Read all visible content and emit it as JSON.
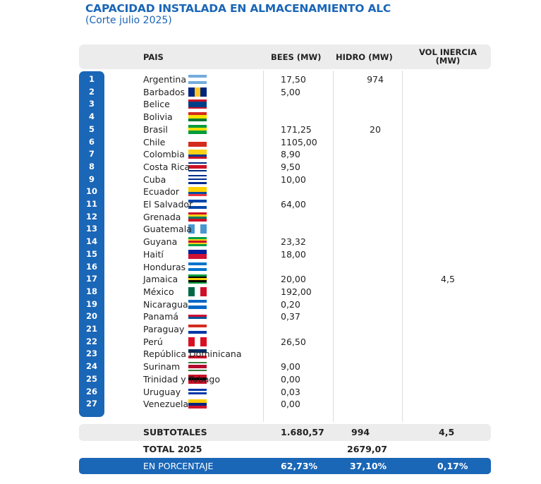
{
  "title": "CAPACIDAD INSTALADA EN ALMACENAMIENTO ALC",
  "subtitle": "(Corte julio 2025)",
  "headers": {
    "pais": "PAIS",
    "bees": "BEES (MW)",
    "hidro": "HIDRO (MW)",
    "vol": "VOL INERCIA (MW)"
  },
  "rows": [
    {
      "n": "1",
      "country": "Argentina",
      "bees": "17,50",
      "hidro": "974",
      "vol": "",
      "flag": [
        "#74acdf",
        "#ffffff",
        "#74acdf"
      ]
    },
    {
      "n": "2",
      "country": "Barbados",
      "bees": "5,00",
      "hidro": "",
      "vol": "",
      "flag": [
        "#00267f",
        "#ffc726",
        "#00267f"
      ],
      "vert": true
    },
    {
      "n": "3",
      "country": "Belice",
      "bees": "",
      "hidro": "",
      "vol": "",
      "flag": [
        "#ce1126",
        "#003f87",
        "#003f87",
        "#003f87",
        "#ce1126"
      ]
    },
    {
      "n": "4",
      "country": "Bolivia",
      "bees": "",
      "hidro": "",
      "vol": "",
      "flag": [
        "#d52b1e",
        "#f9e300",
        "#007934"
      ]
    },
    {
      "n": "5",
      "country": "Brasil",
      "bees": "171,25",
      "hidro": "20",
      "vol": "",
      "flag": [
        "#009c3b",
        "#ffdf00",
        "#009c3b"
      ]
    },
    {
      "n": "6",
      "country": "Chile",
      "bees": "1105,00",
      "hidro": "",
      "vol": "",
      "flag": [
        "#ffffff",
        "#d52b1e"
      ]
    },
    {
      "n": "7",
      "country": "Colombia",
      "bees": "8,90",
      "hidro": "",
      "vol": "",
      "flag": [
        "#fcd116",
        "#fcd116",
        "#003893",
        "#ce1126"
      ]
    },
    {
      "n": "8",
      "country": "Costa Rica",
      "bees": "9,50",
      "hidro": "",
      "vol": "",
      "flag": [
        "#002b7f",
        "#ffffff",
        "#ce1126",
        "#ce1126",
        "#ffffff",
        "#002b7f"
      ]
    },
    {
      "n": "9",
      "country": "Cuba",
      "bees": "10,00",
      "hidro": "",
      "vol": "",
      "flag": [
        "#002a8f",
        "#ffffff",
        "#002a8f",
        "#ffffff",
        "#002a8f"
      ]
    },
    {
      "n": "10",
      "country": "Ecuador",
      "bees": "",
      "hidro": "",
      "vol": "",
      "flag": [
        "#ffd100",
        "#ffd100",
        "#034ea2",
        "#ef3340"
      ]
    },
    {
      "n": "11",
      "country": "El Salvador",
      "bees": "64,00",
      "hidro": "",
      "vol": "",
      "flag": [
        "#0047ab",
        "#ffffff",
        "#0047ab"
      ]
    },
    {
      "n": "12",
      "country": "Grenada",
      "bees": "",
      "hidro": "",
      "vol": "",
      "flag": [
        "#ce1126",
        "#fcd116",
        "#007a5e",
        "#ce1126"
      ]
    },
    {
      "n": "13",
      "country": "Guatemala",
      "bees": "",
      "hidro": "",
      "vol": "",
      "flag": [
        "#4997d0",
        "#ffffff",
        "#4997d0"
      ],
      "vert": true
    },
    {
      "n": "14",
      "country": "Guyana",
      "bees": "23,32",
      "hidro": "",
      "vol": "",
      "flag": [
        "#009e49",
        "#fcd116",
        "#ce1126",
        "#fcd116",
        "#009e49"
      ]
    },
    {
      "n": "15",
      "country": "Haití",
      "bees": "18,00",
      "hidro": "",
      "vol": "",
      "flag": [
        "#00209f",
        "#d21034"
      ]
    },
    {
      "n": "16",
      "country": "Honduras",
      "bees": "",
      "hidro": "",
      "vol": "",
      "flag": [
        "#0073cf",
        "#ffffff",
        "#0073cf"
      ]
    },
    {
      "n": "17",
      "country": "Jamaica",
      "bees": "20,00",
      "hidro": "",
      "vol": "4,5",
      "flag": [
        "#009b3a",
        "#000000",
        "#fed100",
        "#000000",
        "#009b3a"
      ]
    },
    {
      "n": "18",
      "country": "México",
      "bees": "192,00",
      "hidro": "",
      "vol": "",
      "flag": [
        "#006847",
        "#ffffff",
        "#ce1126"
      ],
      "vert": true
    },
    {
      "n": "19",
      "country": "Nicaragua",
      "bees": "0,20",
      "hidro": "",
      "vol": "",
      "flag": [
        "#0067c6",
        "#ffffff",
        "#0067c6"
      ]
    },
    {
      "n": "20",
      "country": "Panamá",
      "bees": "0,37",
      "hidro": "",
      "vol": "",
      "flag": [
        "#ffffff",
        "#d21034",
        "#005293",
        "#ffffff"
      ]
    },
    {
      "n": "21",
      "country": "Paraguay",
      "bees": "",
      "hidro": "",
      "vol": "",
      "flag": [
        "#d52b1e",
        "#ffffff",
        "#0038a8"
      ]
    },
    {
      "n": "22",
      "country": "Perú",
      "bees": "26,50",
      "hidro": "",
      "vol": "",
      "flag": [
        "#d91023",
        "#ffffff",
        "#d91023"
      ],
      "vert": true
    },
    {
      "n": "23",
      "country": "República Dominicana",
      "bees": "",
      "hidro": "",
      "vol": "",
      "flag": [
        "#002d62",
        "#ffffff",
        "#ce1126"
      ]
    },
    {
      "n": "24",
      "country": "Surinam",
      "bees": "9,00",
      "hidro": "",
      "vol": "",
      "flag": [
        "#377e3f",
        "#ffffff",
        "#b40a2d",
        "#b40a2d",
        "#ffffff",
        "#377e3f"
      ]
    },
    {
      "n": "25",
      "country": "Trinidad y Tobago",
      "bees": "0,00",
      "hidro": "",
      "vol": "",
      "flag": [
        "#ce1126",
        "#000000",
        "#ce1126"
      ]
    },
    {
      "n": "26",
      "country": "Uruguay",
      "bees": "0,03",
      "hidro": "",
      "vol": "",
      "flag": [
        "#ffffff",
        "#0038a8",
        "#ffffff",
        "#0038a8",
        "#ffffff"
      ]
    },
    {
      "n": "27",
      "country": "Venezuela",
      "bees": "0,00",
      "hidro": "",
      "vol": "",
      "flag": [
        "#ffcc00",
        "#00247d",
        "#cf142b"
      ]
    }
  ],
  "subtotals": {
    "label": "SUBTOTALES",
    "bees": "1.680,57",
    "hidro": "994",
    "vol": "4,5"
  },
  "total": {
    "label": "TOTAL 2025",
    "value": "2679,07"
  },
  "percent": {
    "label": "EN PORCENTAJE",
    "bees": "62,73%",
    "hidro": "37,10%",
    "vol": "0,17%"
  },
  "colors": {
    "accent": "#1a66b7",
    "header_bg": "#ececec"
  }
}
